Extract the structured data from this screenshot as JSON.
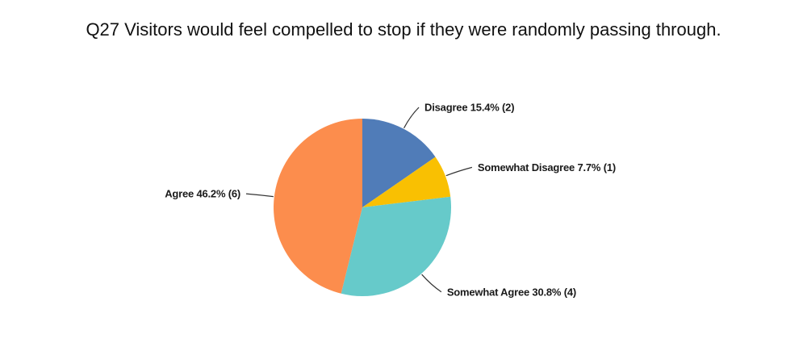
{
  "chart_data": {
    "type": "pie",
    "title": "Q27 Visitors would feel compelled to stop if they were randomly passing through.",
    "legend_position": "none",
    "label_style": "outside-with-leader-lines",
    "start_angle_deg": 0,
    "direction": "clockwise",
    "slices": [
      {
        "label": "Disagree",
        "percent": 15.4,
        "count": 2,
        "display": "Disagree 15.4% (2)",
        "color": "#507CB8"
      },
      {
        "label": "Somewhat Disagree",
        "percent": 7.7,
        "count": 1,
        "display": "Somewhat Disagree 7.7% (1)",
        "color": "#F9C002"
      },
      {
        "label": "Somewhat Agree",
        "percent": 30.8,
        "count": 4,
        "display": "Somewhat Agree 30.8% (4)",
        "color": "#66CACA"
      },
      {
        "label": "Agree",
        "percent": 46.2,
        "count": 6,
        "display": "Agree 46.2% (6)",
        "color": "#FC8D4D"
      }
    ],
    "leader_line_color": "#333333",
    "label_text_color": "#1a1a1a",
    "background_color": "#ffffff"
  }
}
